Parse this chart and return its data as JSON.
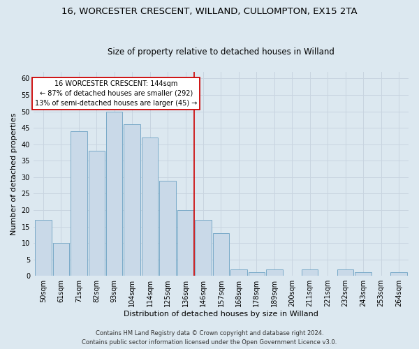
{
  "title1": "16, WORCESTER CRESCENT, WILLAND, CULLOMPTON, EX15 2TA",
  "title2": "Size of property relative to detached houses in Willand",
  "xlabel": "Distribution of detached houses by size in Willand",
  "ylabel": "Number of detached properties",
  "categories": [
    "50sqm",
    "61sqm",
    "71sqm",
    "82sqm",
    "93sqm",
    "104sqm",
    "114sqm",
    "125sqm",
    "136sqm",
    "146sqm",
    "157sqm",
    "168sqm",
    "178sqm",
    "189sqm",
    "200sqm",
    "211sqm",
    "221sqm",
    "232sqm",
    "243sqm",
    "253sqm",
    "264sqm"
  ],
  "values": [
    17,
    10,
    44,
    38,
    50,
    46,
    42,
    29,
    20,
    17,
    13,
    2,
    1,
    2,
    0,
    2,
    0,
    2,
    1,
    0,
    1
  ],
  "bar_color": "#c9d9e8",
  "bar_edge_color": "#7aaac8",
  "annotation_lines": [
    "16 WORCESTER CRESCENT: 144sqm",
    "← 87% of detached houses are smaller (292)",
    "13% of semi-detached houses are larger (45) →"
  ],
  "annotation_box_color": "#cc0000",
  "vline_color": "#cc0000",
  "vline_x": 8.5,
  "ylim": [
    0,
    62
  ],
  "yticks": [
    0,
    5,
    10,
    15,
    20,
    25,
    30,
    35,
    40,
    45,
    50,
    55,
    60
  ],
  "grid_color": "#c8d4e0",
  "background_color": "#dce8f0",
  "fig_background_color": "#dce8f0",
  "footer_line1": "Contains HM Land Registry data © Crown copyright and database right 2024.",
  "footer_line2": "Contains public sector information licensed under the Open Government Licence v3.0.",
  "title1_fontsize": 9.5,
  "title2_fontsize": 8.5,
  "tick_fontsize": 7,
  "xlabel_fontsize": 8,
  "ylabel_fontsize": 8,
  "annotation_fontsize": 7,
  "footer_fontsize": 6
}
